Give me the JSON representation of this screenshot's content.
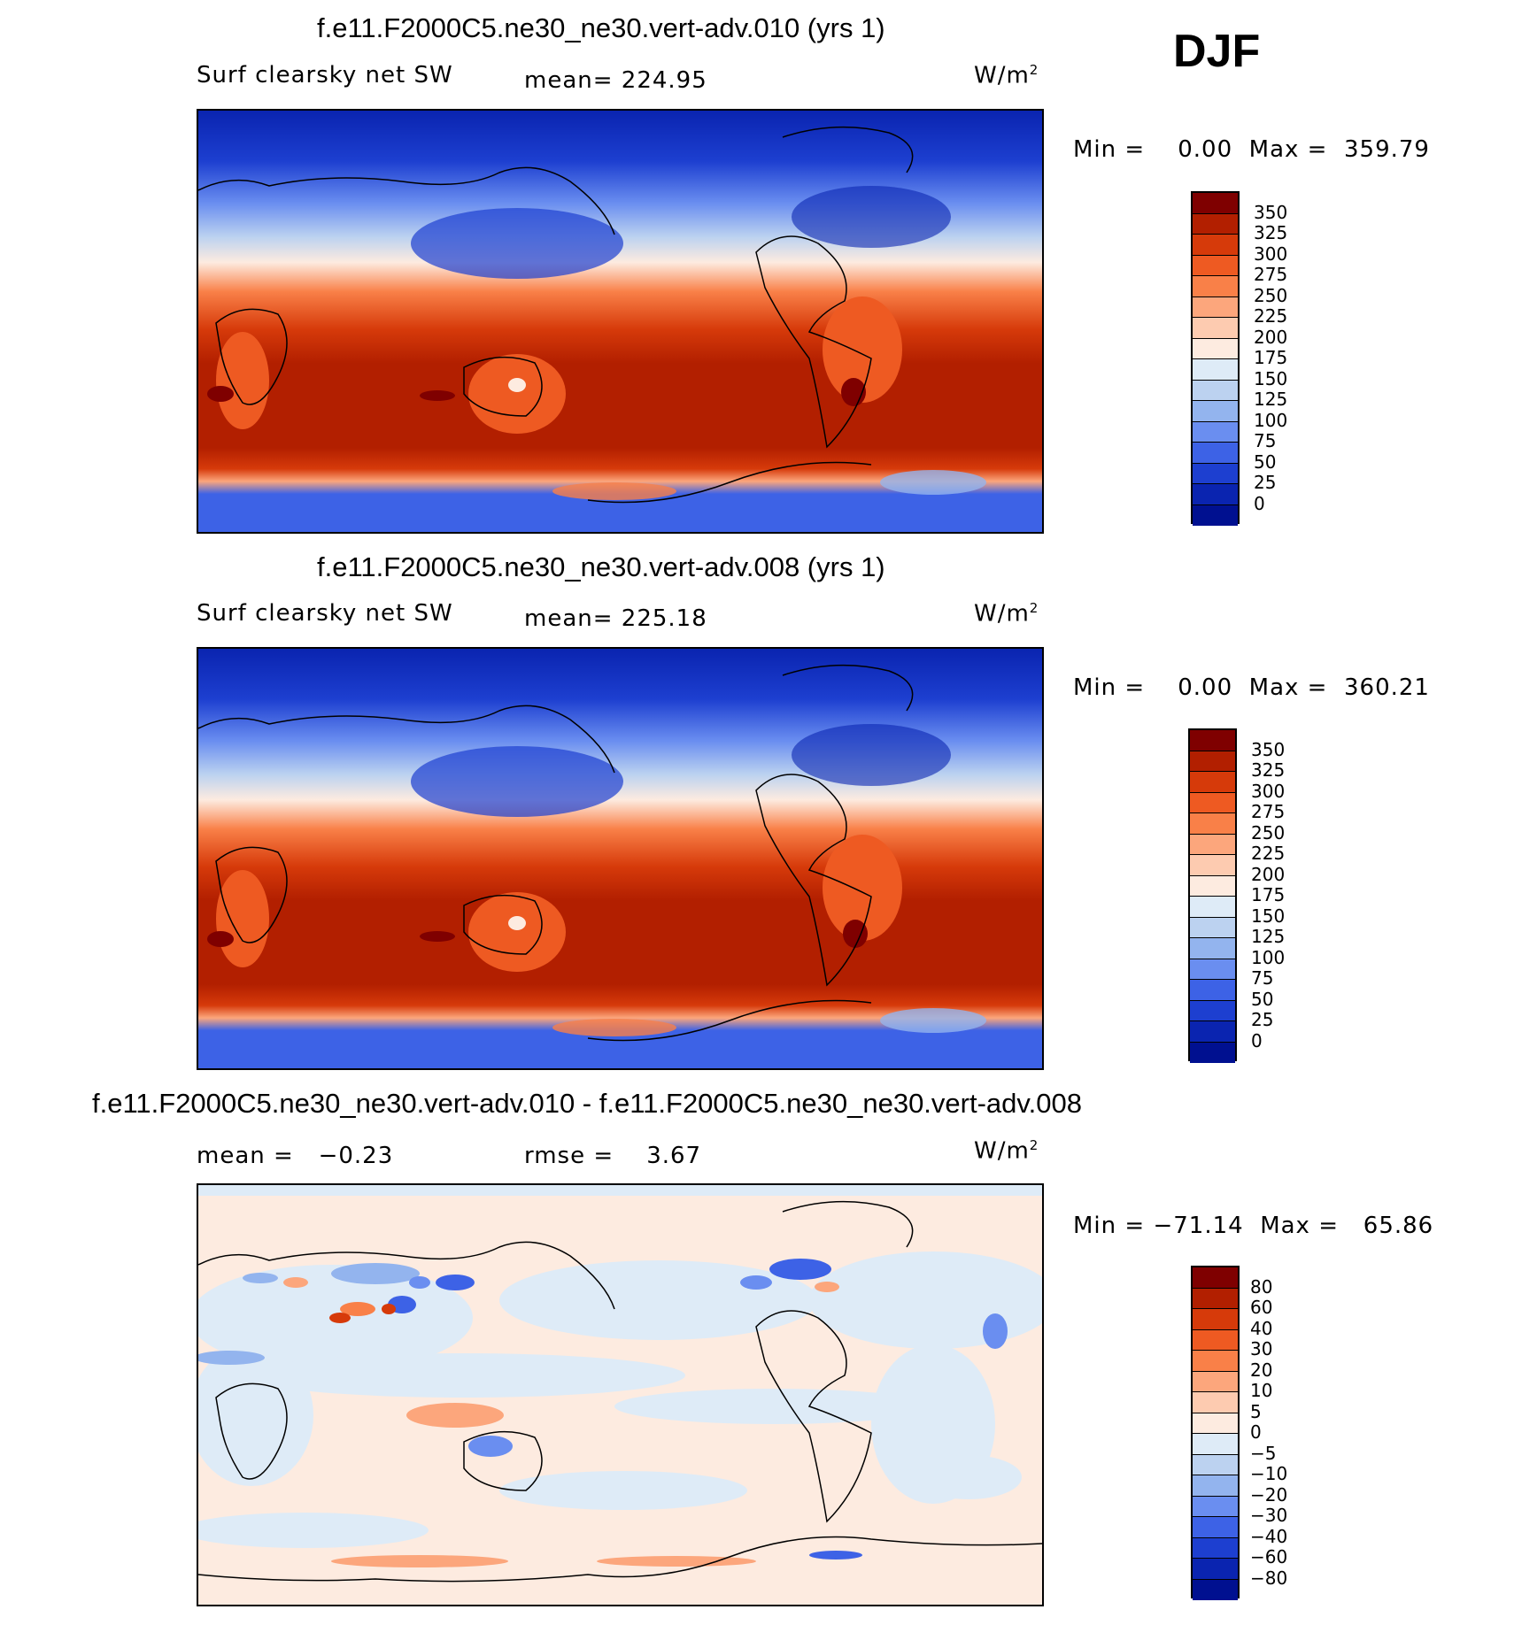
{
  "season": "DJF",
  "panels": [
    {
      "title": "f.e11.F2000C5.ne30_ne30.vert-adv.010 (yrs 1)",
      "left_label": "Surf clearsky net SW",
      "center_label": "mean= 224.95",
      "units": "W/m",
      "units_sup": "2",
      "minmax": "Min =    0.00  Max =  359.79",
      "colorbar": {
        "labels": [
          "350",
          "325",
          "300",
          "275",
          "250",
          "225",
          "200",
          "175",
          "150",
          "125",
          "100",
          "75",
          "50",
          "25",
          "0"
        ],
        "colors": [
          "#7f0000",
          "#b21f00",
          "#d63a0a",
          "#ee5a22",
          "#f98048",
          "#fca67c",
          "#fdcbb0",
          "#fdebe0",
          "#deebf7",
          "#bcd2f0",
          "#93b4ee",
          "#6a8ef0",
          "#3d62e6",
          "#1d3fd0",
          "#0a24b0",
          "#001090"
        ]
      }
    },
    {
      "title": "f.e11.F2000C5.ne30_ne30.vert-adv.008 (yrs 1)",
      "left_label": "Surf clearsky net SW",
      "center_label": "mean= 225.18",
      "units": "W/m",
      "units_sup": "2",
      "minmax": "Min =    0.00  Max =  360.21",
      "colorbar": {
        "labels": [
          "350",
          "325",
          "300",
          "275",
          "250",
          "225",
          "200",
          "175",
          "150",
          "125",
          "100",
          "75",
          "50",
          "25",
          "0"
        ],
        "colors": [
          "#7f0000",
          "#b21f00",
          "#d63a0a",
          "#ee5a22",
          "#f98048",
          "#fca67c",
          "#fdcbb0",
          "#fdebe0",
          "#deebf7",
          "#bcd2f0",
          "#93b4ee",
          "#6a8ef0",
          "#3d62e6",
          "#1d3fd0",
          "#0a24b0",
          "#001090"
        ]
      }
    },
    {
      "title": "f.e11.F2000C5.ne30_ne30.vert-adv.010 - f.e11.F2000C5.ne30_ne30.vert-adv.008",
      "left_label": "mean =   −0.23",
      "center_label": "rmse =    3.67",
      "units": "W/m",
      "units_sup": "2",
      "minmax": "Min = −71.14  Max =   65.86",
      "colorbar": {
        "labels": [
          "80",
          "60",
          "40",
          "30",
          "20",
          "10",
          "5",
          "0",
          "−5",
          "−10",
          "−20",
          "−30",
          "−40",
          "−60",
          "−80"
        ],
        "colors": [
          "#7f0000",
          "#b21f00",
          "#d63a0a",
          "#ee5a22",
          "#f98048",
          "#fca67c",
          "#fdcbb0",
          "#fdebe0",
          "#deebf7",
          "#bcd2f0",
          "#93b4ee",
          "#6a8ef0",
          "#3d62e6",
          "#1d3fd0",
          "#0a24b0",
          "#001090"
        ]
      }
    }
  ]
}
